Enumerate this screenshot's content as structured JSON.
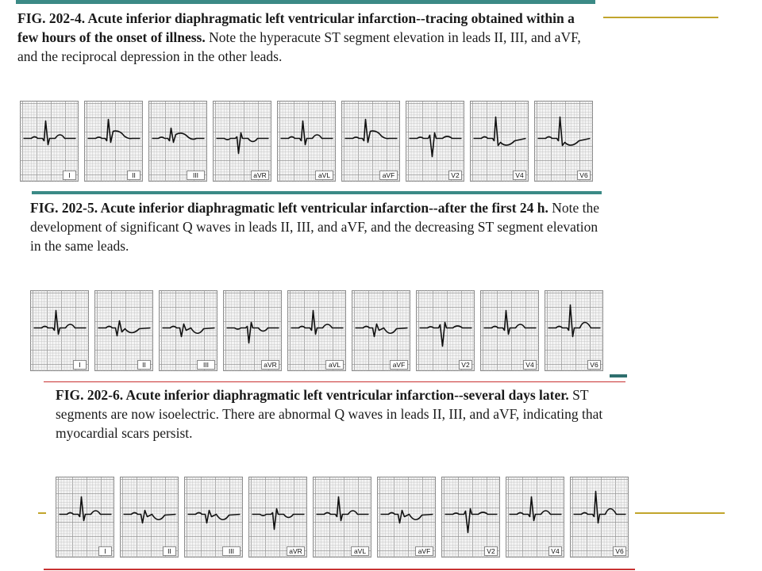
{
  "colors": {
    "teal_rule": "#3b8a86",
    "olive_rule": "#c1a52c",
    "red_rule": "#c83232",
    "trace": "#111111",
    "grid": "#8a8a8a"
  },
  "figures": [
    {
      "title": "FIG. 202-4. Acute inferior diaphragmatic left ventricular infarction--tracing obtained within a few hours of the onset of illness.",
      "text": "Note the hyperacute ST segment elevation in leads II, III, and aVF, and the reciprocal depression in the other leads.",
      "leads": [
        "I",
        "II",
        "III",
        "aVR",
        "aVL",
        "aVF",
        "V2",
        "V4",
        "V6"
      ]
    },
    {
      "title": "FIG. 202-5. Acute inferior diaphragmatic left ventricular infarction--after the first 24 h.",
      "text": "Note the development of significant Q waves in leads II, III, and aVF, and the decreasing ST segment elevation in the same leads.",
      "leads": [
        "I",
        "II",
        "III",
        "aVR",
        "aVL",
        "aVF",
        "V2",
        "V4",
        "V6"
      ]
    },
    {
      "title": "FIG. 202-6. Acute inferior diaphragmatic left ventricular infarction--several days later.",
      "text": "ST segments are now isoelectric. There are abnormal Q waves in leads II, III, and aVF, indicating that myocardial scars persist.",
      "leads": [
        "I",
        "II",
        "III",
        "aVR",
        "aVL",
        "aVF",
        "V2",
        "V4",
        "V6"
      ]
    }
  ]
}
